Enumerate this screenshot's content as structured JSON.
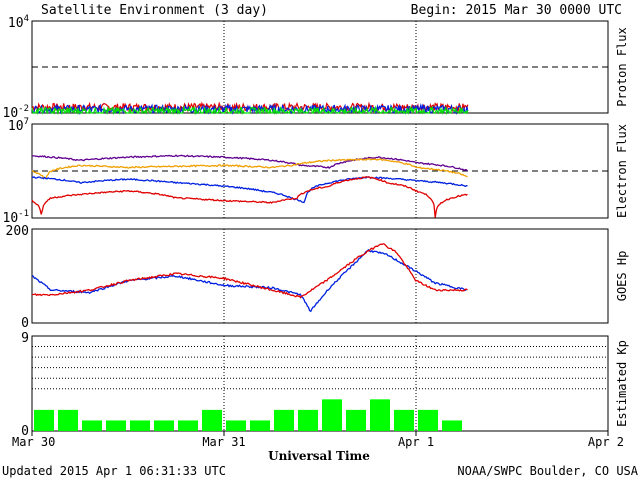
{
  "header": {
    "title": "Satellite Environment (3 day)",
    "begin": "Begin:  2015 Mar 30 0000 UTC"
  },
  "footer": {
    "updated": "Updated 2015 Apr  1 06:31:33 UTC",
    "credit": "NOAA/SWPC Boulder, CO USA"
  },
  "xaxis": {
    "label": "Universal Time",
    "ticks": [
      "Mar 30",
      "Mar 31",
      "Apr 1",
      "Apr 2"
    ],
    "range_days": [
      0,
      3
    ],
    "data_end_day": 2.27
  },
  "colors": {
    "red": "#e00000",
    "blue": "#0020e0",
    "green": "#00e000",
    "purple": "#600090",
    "orange": "#f0a000",
    "kp_bar": "#00ff00"
  },
  "chart_data": [
    {
      "type": "line",
      "name": "proton-flux",
      "ylabel": "Proton Flux",
      "yscale": "log",
      "ylim": [
        0.01,
        10000
      ],
      "ytick_labels": [
        {
          "base": "10",
          "exp": "4"
        },
        {
          "base": "10",
          "exp": "-2"
        }
      ],
      "threshold": 10,
      "series": [
        {
          "color": "red",
          "level": 0.024
        },
        {
          "color": "blue",
          "level": 0.018
        },
        {
          "color": "green",
          "level": 0.013
        }
      ]
    },
    {
      "type": "line",
      "name": "electron-flux",
      "ylabel": "Electron Flux",
      "yscale": "log",
      "ylim": [
        0.1,
        10000000
      ],
      "ytick_labels": [
        {
          "base": "10",
          "exp": "7"
        },
        {
          "base": "10",
          "exp": "-1"
        }
      ],
      "threshold": 1000,
      "series": [
        {
          "color": "purple",
          "x": [
            0,
            0.25,
            0.5,
            0.75,
            1.0,
            1.25,
            1.4,
            1.55,
            1.8,
            2.0,
            2.27
          ],
          "y": [
            20000,
            8000,
            15000,
            20000,
            15000,
            8000,
            3000,
            2000,
            15000,
            5000,
            1000
          ]
        },
        {
          "color": "orange",
          "x": [
            0,
            0.07,
            0.1,
            0.25,
            0.5,
            0.75,
            1.0,
            1.25,
            1.35,
            1.55,
            1.8,
            2.0,
            2.27
          ],
          "y": [
            1000,
            200,
            1000,
            3000,
            2000,
            2500,
            3000,
            2000,
            3000,
            8000,
            10000,
            2000,
            300
          ]
        },
        {
          "color": "blue",
          "x": [
            0,
            0.25,
            0.5,
            0.75,
            1.0,
            1.2,
            1.35,
            1.42,
            1.55,
            1.75,
            2.0,
            2.27
          ],
          "y": [
            300,
            100,
            200,
            100,
            50,
            20,
            5,
            2,
            100,
            300,
            150,
            50
          ]
        },
        {
          "color": "red",
          "x": [
            0,
            0.05,
            0.1,
            0.25,
            0.5,
            0.75,
            1.0,
            1.25,
            1.38,
            1.55,
            1.75,
            1.85,
            2.0,
            2.1,
            2.27
          ],
          "y": [
            3,
            0.1,
            5,
            10,
            20,
            5,
            3,
            2,
            5,
            50,
            300,
            100,
            20,
            0.1,
            10
          ]
        }
      ]
    },
    {
      "type": "line",
      "name": "goes-hp",
      "ylabel": "GOES Hp",
      "yscale": "linear",
      "ylim": [
        0,
        200
      ],
      "ytick_labels": [
        "200",
        "0"
      ],
      "series": [
        {
          "color": "blue",
          "x": [
            0,
            0.1,
            0.3,
            0.5,
            0.75,
            1.0,
            1.25,
            1.4,
            1.45,
            1.55,
            1.75,
            1.85,
            2.0,
            2.1,
            2.27
          ],
          "y": [
            100,
            70,
            65,
            90,
            100,
            80,
            75,
            60,
            25,
            75,
            155,
            145,
            110,
            85,
            70
          ]
        },
        {
          "color": "red",
          "x": [
            0,
            0.1,
            0.3,
            0.5,
            0.75,
            1.0,
            1.25,
            1.4,
            1.55,
            1.7,
            1.82,
            1.9,
            2.0,
            2.1,
            2.27
          ],
          "y": [
            60,
            60,
            70,
            90,
            105,
            95,
            70,
            55,
            95,
            140,
            170,
            150,
            90,
            70,
            70
          ]
        }
      ]
    },
    {
      "type": "bar",
      "name": "estimated-kp",
      "ylabel": "Estimated Kp",
      "ylim": [
        0,
        9
      ],
      "ytick_labels": [
        "9",
        "0"
      ],
      "grid_levels": [
        4,
        5,
        6,
        7,
        8
      ],
      "bar_width_hours": 3,
      "values": [
        2,
        2,
        1,
        1,
        1,
        1,
        1,
        2,
        1,
        1,
        2,
        2,
        3,
        2,
        3,
        2,
        2,
        1
      ]
    }
  ]
}
